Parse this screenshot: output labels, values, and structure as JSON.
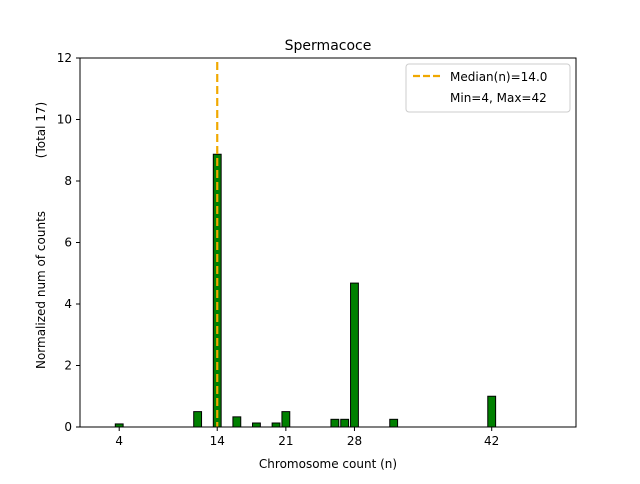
{
  "chart_data": {
    "type": "bar",
    "title": "Spermacoce",
    "xlabel": "Chromosome count (n)",
    "ylabel": "Normalized num of counts",
    "ylabel_note": "(Total 17)",
    "xlim": [
      0,
      50.6
    ],
    "ylim": [
      0,
      12
    ],
    "xticks": [
      4,
      14,
      21,
      28,
      42
    ],
    "yticks": [
      0,
      2,
      4,
      6,
      8,
      10,
      12
    ],
    "x": [
      4,
      12,
      14,
      16,
      18,
      20,
      21,
      26,
      27,
      28,
      32,
      42
    ],
    "values": [
      0.1,
      0.5,
      8.87,
      0.33,
      0.13,
      0.13,
      0.5,
      0.25,
      0.25,
      4.68,
      0.25,
      1.0
    ],
    "bar_color": "#008000",
    "median": 14.0,
    "median_color": "#f0a800",
    "legend": {
      "placement": "top-right",
      "entries": [
        "Median(n)=14.0",
        "Min=4, Max=42"
      ]
    }
  }
}
